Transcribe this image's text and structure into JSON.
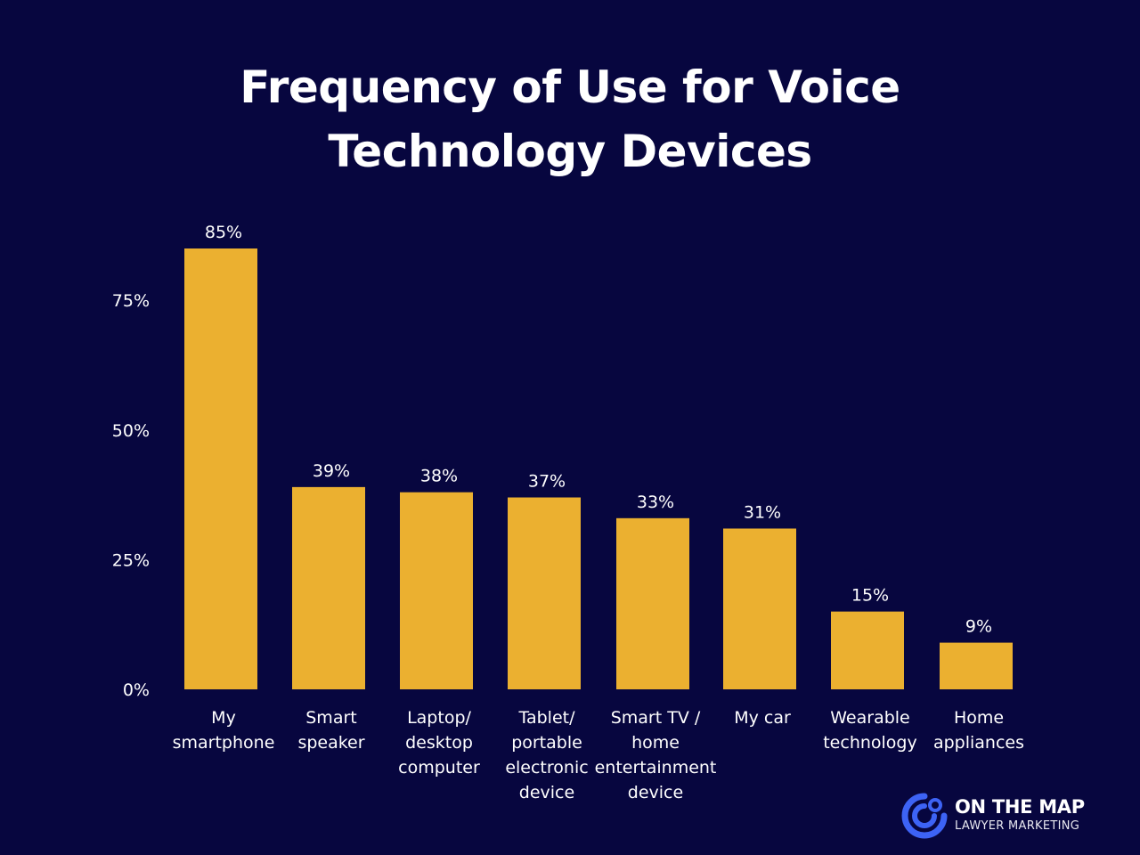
{
  "chart_data": {
    "type": "bar",
    "title": "Frequency of Use for Voice Technology Devices",
    "xlabel": "",
    "ylabel": "",
    "ylim": [
      0,
      85
    ],
    "yticks": [
      "0%",
      "25%",
      "50%",
      "75%"
    ],
    "ytick_values": [
      0,
      25,
      50,
      75
    ],
    "categories": [
      [
        "My",
        "smartphone"
      ],
      [
        "Smart",
        "speaker"
      ],
      [
        "Laptop/",
        "desktop",
        "computer"
      ],
      [
        "Tablet/",
        "portable",
        "electronic",
        "device"
      ],
      [
        "Smart TV /",
        "home",
        "entertainment",
        "device"
      ],
      [
        "My car"
      ],
      [
        "Wearable",
        "technology"
      ],
      [
        "Home",
        "appliances"
      ]
    ],
    "values": [
      85,
      39,
      38,
      37,
      33,
      31,
      15,
      9
    ],
    "value_labels": [
      "85%",
      "39%",
      "38%",
      "37%",
      "33%",
      "31%",
      "15%",
      "9%"
    ],
    "bar_color": "#ebb030",
    "background_color": "#07063f",
    "grid": false,
    "legend": "none"
  },
  "brand": {
    "name": "ON THE MAP",
    "tagline": "LAWYER MARKETING",
    "logo_icon": "on-the-map-logo-icon",
    "color": "#3d63f5"
  }
}
